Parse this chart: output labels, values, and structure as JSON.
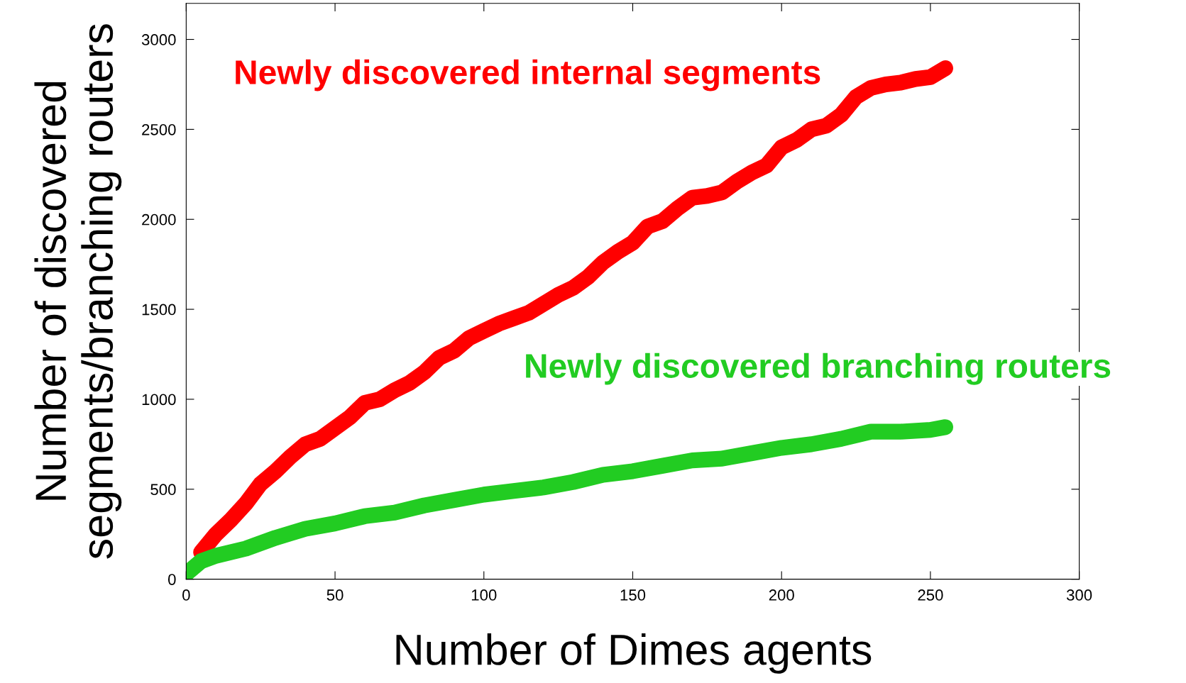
{
  "chart_data": {
    "type": "line",
    "xlabel": "Number of Dimes agents",
    "ylabel": "Number of discovered\nsegments/branching routers",
    "xlim": [
      0,
      300
    ],
    "ylim": [
      0,
      3200
    ],
    "xticks": [
      0,
      50,
      100,
      150,
      200,
      250,
      300
    ],
    "yticks": [
      0,
      500,
      1000,
      1500,
      2000,
      2500,
      3000
    ],
    "grid": false,
    "line_style": "solid",
    "series": [
      {
        "name": "Newly discovered internal segments",
        "color": "#ff0000",
        "x": [
          5,
          10,
          15,
          20,
          25,
          30,
          35,
          40,
          45,
          50,
          55,
          60,
          65,
          70,
          75,
          80,
          85,
          90,
          95,
          100,
          105,
          110,
          115,
          120,
          125,
          130,
          135,
          140,
          145,
          150,
          155,
          160,
          165,
          170,
          175,
          180,
          185,
          190,
          195,
          200,
          205,
          210,
          215,
          220,
          225,
          230,
          235,
          240,
          245,
          250,
          255
        ],
        "values": [
          150,
          250,
          330,
          420,
          530,
          600,
          680,
          750,
          780,
          840,
          900,
          980,
          1000,
          1050,
          1090,
          1150,
          1230,
          1270,
          1340,
          1380,
          1420,
          1450,
          1480,
          1530,
          1580,
          1620,
          1680,
          1760,
          1820,
          1870,
          1960,
          1990,
          2060,
          2120,
          2130,
          2150,
          2210,
          2260,
          2300,
          2400,
          2440,
          2500,
          2520,
          2580,
          2680,
          2730,
          2750,
          2760,
          2780,
          2790,
          2840
        ]
      },
      {
        "name": "Newly discovered branching routers",
        "color": "#22cc22",
        "x": [
          0,
          5,
          10,
          20,
          30,
          40,
          50,
          60,
          70,
          80,
          90,
          100,
          110,
          120,
          130,
          140,
          150,
          160,
          170,
          180,
          190,
          200,
          210,
          220,
          230,
          240,
          250,
          255
        ],
        "values": [
          30,
          100,
          130,
          170,
          230,
          280,
          310,
          350,
          370,
          410,
          440,
          470,
          490,
          510,
          540,
          580,
          600,
          630,
          660,
          670,
          700,
          730,
          750,
          780,
          820,
          820,
          830,
          845
        ]
      }
    ]
  }
}
